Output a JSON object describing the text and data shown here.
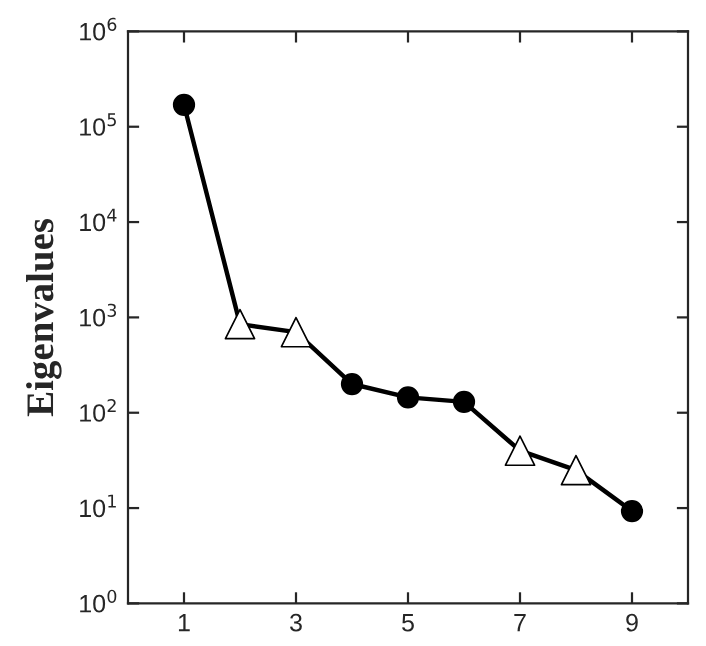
{
  "chart_data": {
    "type": "line",
    "ylabel": "Eigenvalues",
    "log": "y",
    "xlim": [
      0,
      10
    ],
    "xticks": [
      1,
      3,
      5,
      7,
      9
    ],
    "ylim": [
      1,
      1000000
    ],
    "yticks": [
      {
        "value": 1,
        "label": "10$^{0}$"
      },
      {
        "value": 10,
        "label": "10$^{1}$"
      },
      {
        "value": 100,
        "label": "10$^{2}$"
      },
      {
        "value": 1000,
        "label": "10$^{3}$"
      },
      {
        "value": 10000,
        "label": "10$^{4}$"
      },
      {
        "value": 100000,
        "label": "10$^{5}$"
      },
      {
        "value": 1000000,
        "label": "10$^{6}$"
      }
    ],
    "grid": false,
    "legend": false,
    "series": [
      {
        "color": "#000000",
        "marker": "none",
        "line_style": "solid",
        "x": [
          1,
          2,
          3,
          4,
          5,
          6,
          7,
          8,
          9
        ],
        "values": [
          170000,
          850,
          700,
          200,
          145,
          130,
          40,
          25,
          9.3
        ]
      },
      {
        "type": "scatter",
        "color": "#000000",
        "marker": "circle",
        "x": [
          1,
          4,
          5,
          6,
          9
        ],
        "values": [
          170000,
          200,
          145,
          130,
          9.3
        ]
      },
      {
        "type": "scatter",
        "color": "#ffffff",
        "marker": "triangle",
        "x": [
          2,
          3,
          7,
          8
        ],
        "values": [
          850,
          700,
          40,
          25
        ]
      }
    ]
  }
}
